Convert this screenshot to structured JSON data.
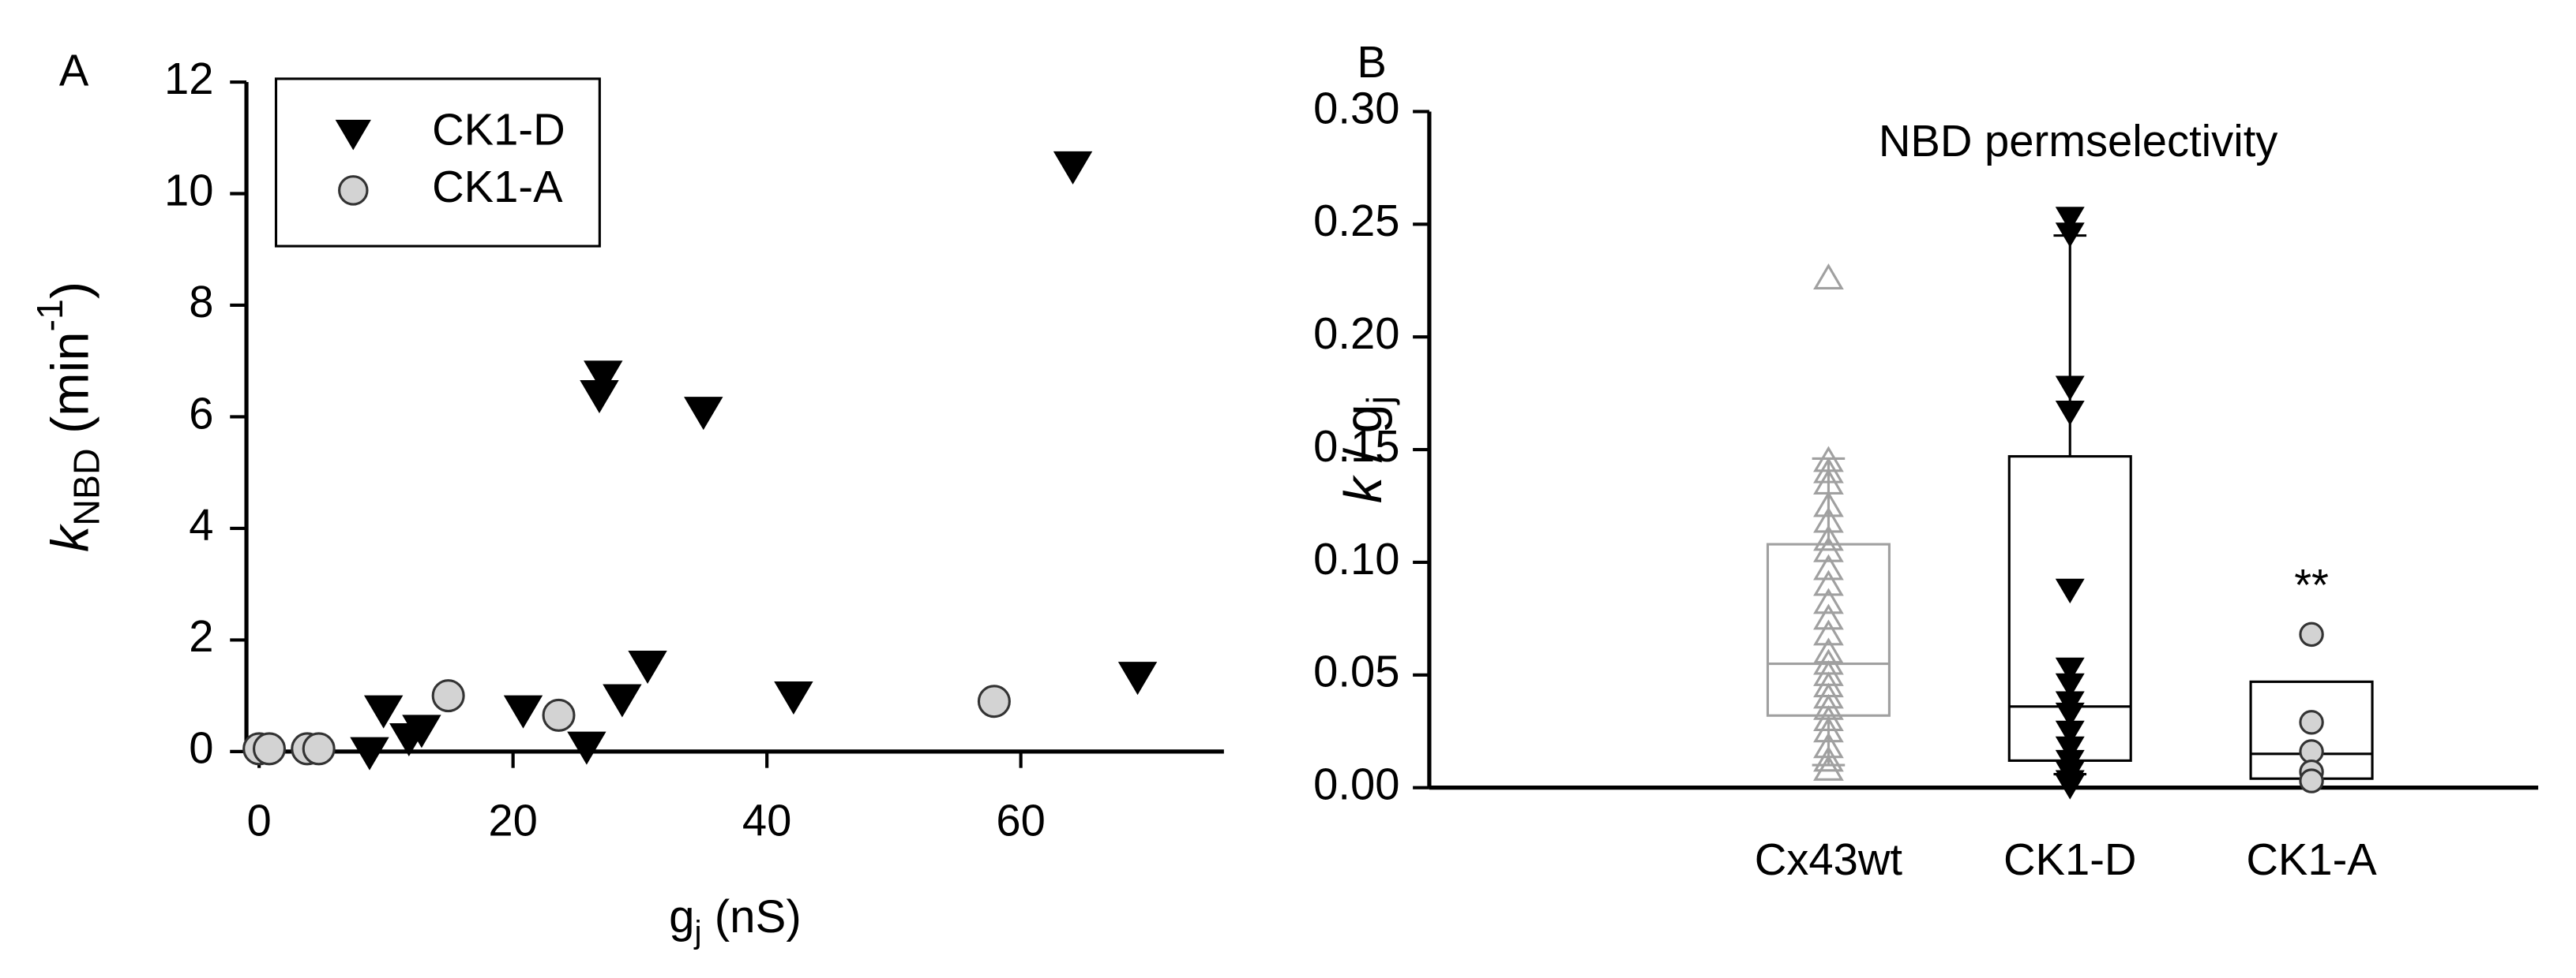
{
  "chart_data": [
    {
      "type": "scatter",
      "panel_label": "A",
      "xlabel": [
        {
          "text": "g"
        },
        {
          "text": "j",
          "style": "sub"
        },
        {
          "text": " (nS)"
        }
      ],
      "ylabel": [
        {
          "text": "k",
          "style": "italic"
        },
        {
          "text": "NBD",
          "style": "sub"
        },
        {
          "text": " (min"
        },
        {
          "text": "-1",
          "style": "super"
        },
        {
          "text": ")"
        }
      ],
      "xlim": [
        -1,
        76
      ],
      "ylim": [
        0,
        12
      ],
      "xticks": [
        0,
        20,
        40,
        60
      ],
      "yticks": [
        0,
        2,
        4,
        6,
        8,
        10,
        12
      ],
      "grid": false,
      "legend": "upper left",
      "series": [
        {
          "name": "CK1-D",
          "marker": "triangle-down",
          "color": "#000000",
          "edgecolor": "#000000",
          "x": [
            8.7,
            9.8,
            11.8,
            12.8,
            20.8,
            25.8,
            27.1,
            26.8,
            28.6,
            30.6,
            35,
            42.1,
            64.1,
            69.2
          ],
          "values": [
            0,
            0.75,
            0.25,
            0.4,
            0.75,
            0.1,
            6.75,
            6.4,
            0.95,
            1.55,
            6.1,
            1.0,
            10.5,
            1.35
          ]
        },
        {
          "name": "CK1-A",
          "marker": "circle",
          "color": "#d3d3d3",
          "edgecolor": "#333333",
          "x": [
            0,
            0.8,
            3.8,
            4.7,
            14.9,
            23.6,
            57.9
          ],
          "values": [
            0.05,
            0.05,
            0.05,
            0.05,
            1.0,
            0.65,
            0.9
          ]
        }
      ]
    },
    {
      "type": "box",
      "panel_label": "B",
      "title": "NBD permselectivity",
      "ylabel": [
        {
          "text": "k",
          "style": "italic"
        },
        {
          "text": " / g"
        },
        {
          "text": "j",
          "style": "sub"
        }
      ],
      "ylim": [
        0,
        0.3
      ],
      "yticks": [
        {
          "value": 0,
          "label": "0.00"
        },
        {
          "value": 0.05,
          "label": "0.05"
        },
        {
          "value": 0.1,
          "label": "0.10"
        },
        {
          "value": 0.15,
          "label": "0.15"
        },
        {
          "value": 0.2,
          "label": "0.20"
        },
        {
          "value": 0.25,
          "label": "0.25"
        },
        {
          "value": 0.3,
          "label": "0.30"
        }
      ],
      "categories": [
        "Cx43wt",
        "CK1-D",
        "CK1-A"
      ],
      "boxes": [
        {
          "color": "#a0a0a0",
          "marker": "triangle-up-open",
          "q1": 0.032,
          "median": 0.055,
          "q3": 0.108,
          "whisker_low": 0.01,
          "whisker_high": 0.146,
          "points": [
            0.226,
            0.145,
            0.14,
            0.135,
            0.125,
            0.118,
            0.11,
            0.105,
            0.097,
            0.09,
            0.082,
            0.075,
            0.068,
            0.06,
            0.055,
            0.05,
            0.045,
            0.04,
            0.035,
            0.03,
            0.025,
            0.018,
            0.012,
            0.008
          ]
        },
        {
          "color": "#000000",
          "marker": "triangle-down",
          "q1": 0.012,
          "median": 0.036,
          "q3": 0.147,
          "whisker_low": 0.006,
          "whisker_high": 0.245,
          "points": [
            0.253,
            0.246,
            0.178,
            0.167,
            0.088,
            0.053,
            0.046,
            0.038,
            0.033,
            0.025,
            0.018,
            0.012,
            0.007,
            0.003,
            0.001
          ]
        },
        {
          "color": "#000000",
          "marker": "circle",
          "q1": 0.004,
          "median": 0.015,
          "q3": 0.047,
          "annotation": "**",
          "points": [
            0.068,
            0.029,
            0.016,
            0.007,
            0.003
          ]
        }
      ]
    }
  ]
}
